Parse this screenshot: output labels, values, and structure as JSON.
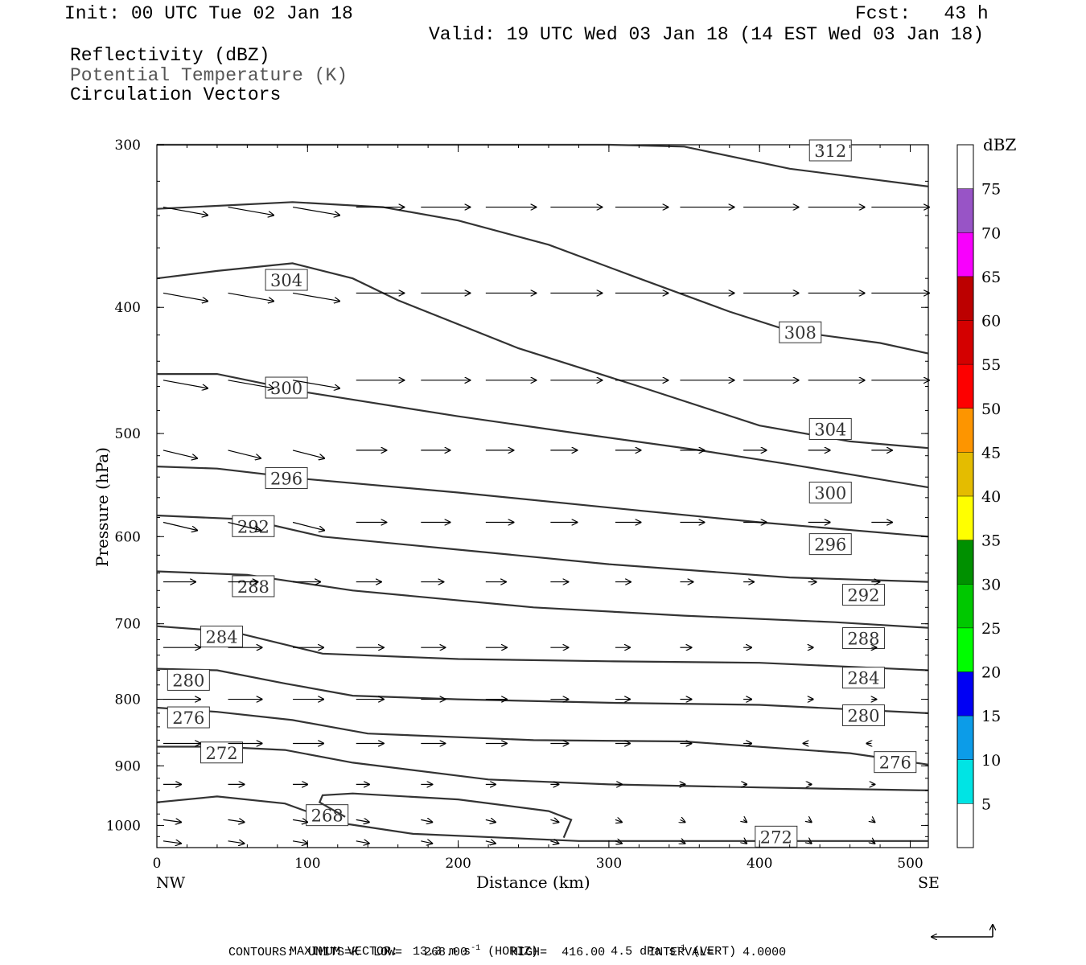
{
  "header": {
    "init": "Init: 00 UTC Tue 02 Jan 18",
    "fcst": "Fcst:   43 h",
    "valid": "Valid: 19 UTC Wed 03 Jan 18 (14 EST Wed 03 Jan 18)",
    "fields": [
      "Reflectivity (dBZ)",
      "Potential Temperature (K)",
      "Circulation Vectors"
    ]
  },
  "chart_data": {
    "type": "cross-section",
    "ylabel": "Pressure (hPa)",
    "xlabel": "Distance (km)",
    "x_end_labels": {
      "left": "NW",
      "right": "SE"
    },
    "xlim": [
      0,
      512
    ],
    "ylim": [
      300,
      1040
    ],
    "y_log": true,
    "x_ticks": [
      0,
      100,
      200,
      300,
      400,
      500
    ],
    "y_ticks": [
      300,
      400,
      500,
      600,
      700,
      800,
      900,
      1000
    ],
    "colorbar": {
      "title": "dBZ",
      "labels": [
        5,
        10,
        15,
        20,
        25,
        30,
        35,
        40,
        45,
        50,
        55,
        60,
        65,
        70,
        75
      ],
      "colors": [
        "#ffffff",
        "#00e4e4",
        "#0c9ce8",
        "#0000f4",
        "#00fd00",
        "#00c800",
        "#009000",
        "#ffff00",
        "#e4bc00",
        "#fd9500",
        "#fd0000",
        "#d40000",
        "#bc0000",
        "#f800fd",
        "#9854c6",
        "#ffffff"
      ]
    },
    "theta_contours": [
      {
        "level": 312,
        "points": [
          [
            0,
            300
          ],
          [
            150,
            300
          ],
          [
            300,
            300
          ],
          [
            350,
            301
          ],
          [
            420,
            313
          ],
          [
            512,
            323
          ]
        ],
        "labels": [
          [
            447,
            303
          ]
        ]
      },
      {
        "level": 304,
        "points": [
          [
            0,
            380
          ],
          [
            40,
            375
          ],
          [
            90,
            370
          ],
          [
            130,
            380
          ],
          [
            160,
            395
          ],
          [
            240,
            430
          ],
          [
            320,
            460
          ],
          [
            400,
            493
          ],
          [
            460,
            507
          ],
          [
            512,
            513
          ]
        ],
        "labels": [
          [
            86,
            381
          ]
        ]
      },
      {
        "level": 308,
        "points": [
          [
            0,
            336
          ],
          [
            90,
            332
          ],
          [
            150,
            335
          ],
          [
            200,
            343
          ],
          [
            260,
            358
          ],
          [
            320,
            380
          ],
          [
            380,
            403
          ],
          [
            420,
            417
          ],
          [
            480,
            426
          ],
          [
            512,
            434
          ]
        ],
        "labels": [
          [
            427,
            418
          ]
        ]
      },
      {
        "level": 300,
        "points": [
          [
            0,
            450
          ],
          [
            40,
            450
          ],
          [
            100,
            465
          ],
          [
            200,
            485
          ],
          [
            280,
            500
          ],
          [
            360,
            515
          ],
          [
            420,
            528
          ],
          [
            512,
            550
          ]
        ],
        "labels": [
          [
            86,
            461
          ]
        ]
      },
      {
        "level": 304,
        "points": [],
        "labels": [
          [
            447,
            496
          ]
        ]
      },
      {
        "level": 296,
        "points": [
          [
            0,
            530
          ],
          [
            40,
            532
          ],
          [
            100,
            542
          ],
          [
            200,
            555
          ],
          [
            300,
            570
          ],
          [
            400,
            585
          ],
          [
            512,
            600
          ]
        ],
        "labels": [
          [
            86,
            541
          ]
        ]
      },
      {
        "level": 300,
        "points": [],
        "labels": [
          [
            447,
            555
          ]
        ]
      },
      {
        "level": 292,
        "points": [
          [
            0,
            578
          ],
          [
            60,
            582
          ],
          [
            110,
            600
          ],
          [
            200,
            614
          ],
          [
            300,
            630
          ],
          [
            420,
            645
          ],
          [
            512,
            650
          ]
        ],
        "labels": [
          [
            64,
            589
          ]
        ]
      },
      {
        "level": 296,
        "points": [],
        "labels": [
          [
            447,
            608
          ]
        ]
      },
      {
        "level": 288,
        "points": [
          [
            0,
            638
          ],
          [
            60,
            642
          ],
          [
            130,
            660
          ],
          [
            250,
            680
          ],
          [
            350,
            690
          ],
          [
            450,
            698
          ],
          [
            512,
            705
          ]
        ],
        "labels": [
          [
            64,
            655
          ]
        ]
      },
      {
        "level": 292,
        "points": [],
        "labels": [
          [
            469,
            665
          ]
        ]
      },
      {
        "level": 284,
        "points": [
          [
            0,
            703
          ],
          [
            50,
            710
          ],
          [
            110,
            738
          ],
          [
            200,
            745
          ],
          [
            300,
            748
          ],
          [
            400,
            750
          ],
          [
            512,
            760
          ]
        ],
        "labels": [
          [
            43,
            716
          ]
        ]
      },
      {
        "level": 288,
        "points": [],
        "labels": [
          [
            469,
            718
          ]
        ]
      },
      {
        "level": 280,
        "points": [
          [
            0,
            758
          ],
          [
            40,
            760
          ],
          [
            85,
            778
          ],
          [
            130,
            795
          ],
          [
            200,
            800
          ],
          [
            300,
            805
          ],
          [
            400,
            808
          ],
          [
            512,
            820
          ]
        ],
        "labels": [
          [
            21,
            773
          ]
        ]
      },
      {
        "level": 284,
        "points": [],
        "labels": [
          [
            469,
            770
          ]
        ]
      },
      {
        "level": 276,
        "points": [
          [
            0,
            812
          ],
          [
            40,
            818
          ],
          [
            90,
            830
          ],
          [
            140,
            850
          ],
          [
            250,
            860
          ],
          [
            350,
            862
          ],
          [
            460,
            880
          ],
          [
            512,
            898
          ]
        ],
        "labels": [
          [
            21,
            826
          ]
        ]
      },
      {
        "level": 280,
        "points": [],
        "labels": [
          [
            469,
            823
          ]
        ]
      },
      {
        "level": 272,
        "points": [
          [
            0,
            870
          ],
          [
            40,
            870
          ],
          [
            85,
            875
          ],
          [
            130,
            895
          ],
          [
            220,
            922
          ],
          [
            300,
            930
          ],
          [
            400,
            935
          ],
          [
            512,
            940
          ]
        ],
        "labels": [
          [
            43,
            879
          ]
        ]
      },
      {
        "level": 276,
        "points": [],
        "labels": [
          [
            490,
            894
          ]
        ]
      },
      {
        "level": 268,
        "points": [
          [
            0,
            960
          ],
          [
            40,
            950
          ],
          [
            85,
            962
          ],
          [
            120,
            995
          ],
          [
            170,
            1015
          ],
          [
            280,
            1028
          ],
          [
            512,
            1028
          ]
        ],
        "labels": [
          [
            113,
            982
          ]
        ]
      },
      {
        "level": 272,
        "points": [
          [
            270,
            1022
          ],
          [
            275,
            990
          ],
          [
            260,
            975
          ],
          [
            200,
            955
          ],
          [
            130,
            945
          ],
          [
            110,
            948
          ],
          [
            108,
            960
          ],
          [
            125,
            985
          ]
        ],
        "labels": []
      },
      {
        "level": 272,
        "points": [
          [
            0,
            0
          ]
        ],
        "labels": [
          [
            411,
            1020
          ]
        ]
      }
    ],
    "vectors_note": "arrow field; u in m/s, w in dPa/s",
    "footer": {
      "max_vector": "MAXIMUM VECTOR:  13.3 m s",
      "horiz": "(HORIZ)",
      "vert_val": "4.5 dPa s",
      "vert": "(VERT)",
      "contours": "CONTOURS:  UNITS=K  LOW=   268.00      HIGH=  416.00      INTERVAL=    4.0000"
    }
  }
}
